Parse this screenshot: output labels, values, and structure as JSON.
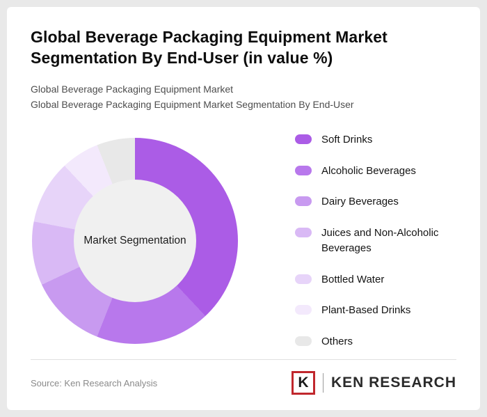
{
  "header": {
    "title": "Global Beverage Packaging Equipment Market Segmentation By End-User (in value %)",
    "subtitle1": "Global Beverage Packaging Equipment Market",
    "subtitle2": "Global Beverage Packaging Equipment Market Segmentation By End-User"
  },
  "chart_data": {
    "type": "pie",
    "variant": "donut",
    "title": "Global Beverage Packaging Equipment Market Segmentation By End-User (in value %)",
    "center_label": "Market Segmentation",
    "legend_position": "right",
    "categories": [
      "Soft Drinks",
      "Alcoholic Beverages",
      "Dairy Beverages",
      "Juices and Non-Alcoholic Beverages",
      "Bottled Water",
      "Plant-Based Drinks",
      "Others"
    ],
    "values": [
      38,
      18,
      12,
      10,
      10,
      6,
      6
    ],
    "colors": [
      "#ab5ce6",
      "#b878ec",
      "#c89af0",
      "#d9b9f5",
      "#e7d4f9",
      "#f3e9fc",
      "#e8e8e8"
    ],
    "hole_color": "#f0f0f0",
    "start_angle_deg": 0,
    "direction": "clockwise"
  },
  "footer": {
    "source": "Source: Ken Research Analysis",
    "logo_monogram": "K",
    "logo_text": "KEN RESEARCH",
    "logo_accent_color": "#c0272d"
  }
}
